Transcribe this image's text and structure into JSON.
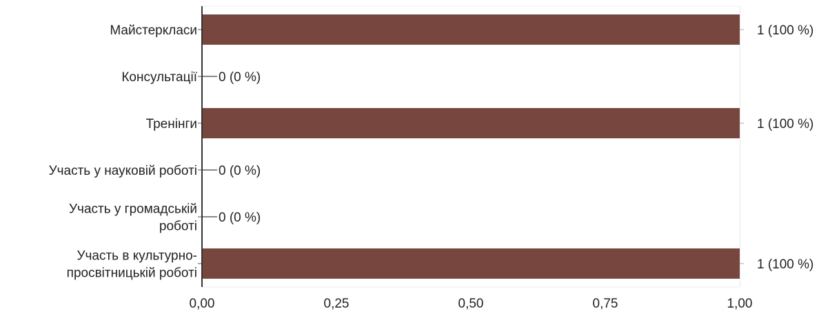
{
  "chart_data": {
    "type": "bar",
    "orientation": "horizontal",
    "categories": [
      [
        "Майстеркласи"
      ],
      [
        "Консультації"
      ],
      [
        "Тренінги"
      ],
      [
        "Участь у науковій роботі"
      ],
      [
        "Участь у громадській",
        "роботі"
      ],
      [
        "Участь в культурно-",
        "просвітницькій роботі"
      ]
    ],
    "values": [
      1,
      0,
      1,
      0,
      0,
      1
    ],
    "value_labels": [
      "1 (100 %)",
      "0 (0 %)",
      "1 (100 %)",
      "0 (0 %)",
      "0 (0 %)",
      "1 (100 %)"
    ],
    "xticks": [
      "0,00",
      "0,25",
      "0,50",
      "0,75",
      "1,00"
    ],
    "xlim": [
      0,
      1
    ],
    "grid": true,
    "legend": "none",
    "bar_color": "#76463f",
    "title": "",
    "xlabel": "",
    "ylabel": ""
  }
}
